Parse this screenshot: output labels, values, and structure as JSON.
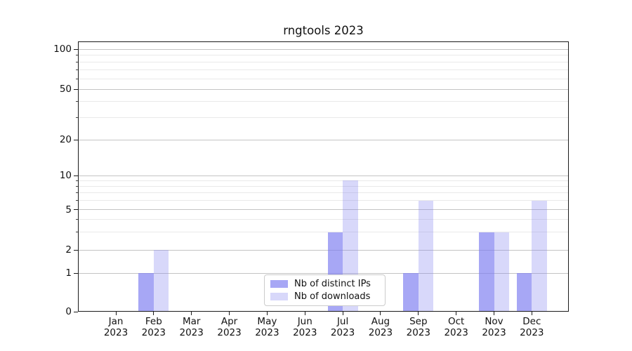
{
  "title": "rngtools 2023",
  "chart_data": {
    "type": "bar",
    "title": "rngtools 2023",
    "categories": [
      "Jan",
      "Feb",
      "Mar",
      "Apr",
      "May",
      "Jun",
      "Jul",
      "Aug",
      "Sep",
      "Oct",
      "Nov",
      "Dec"
    ],
    "year_label": "2023",
    "series": [
      {
        "name": "Nb of distinct IPs",
        "color": "rgba(125,125,240,0.68)",
        "values": [
          0,
          1,
          0,
          0,
          0,
          0,
          3,
          0,
          1,
          0,
          3,
          1
        ]
      },
      {
        "name": "Nb of downloads",
        "color": "rgba(125,125,240,0.30)",
        "values": [
          0,
          2,
          0,
          0,
          0,
          0,
          9,
          0,
          6,
          0,
          3,
          6
        ]
      }
    ],
    "y_axis": {
      "scale": "asinh-like (0,1,2,5,10,20,50,100)",
      "major_ticks": [
        0,
        1,
        2,
        5,
        10,
        20,
        50,
        100
      ],
      "minor_gridlines": [
        3,
        4,
        6,
        7,
        8,
        9,
        30,
        40,
        60,
        70,
        80,
        90
      ],
      "range_top": 115
    },
    "x_axis": {
      "tick_label_format": "Month over 2023"
    },
    "grid": true,
    "legend": {
      "position": "lower center",
      "entries": [
        "Nb of distinct IPs",
        "Nb of downloads"
      ]
    }
  },
  "colors": {
    "bar_dark": "rgba(125,125,240,0.68)",
    "bar_light": "rgba(125,125,240,0.30)",
    "grid_major": "#c4c4c4",
    "grid_minor": "#e9e9e9",
    "spine": "#1a1a1a",
    "legend_border": "#cccccc"
  }
}
